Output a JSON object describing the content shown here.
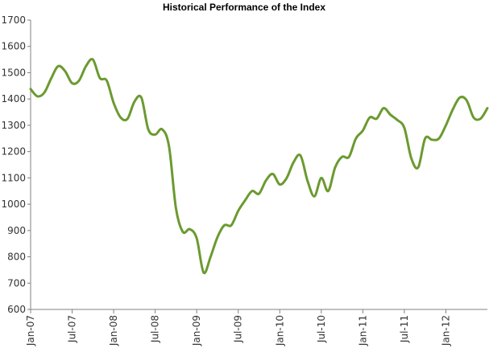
{
  "chart_data": {
    "type": "line",
    "title": "Historical Performance of the Index",
    "xlabel": "",
    "ylabel": "",
    "ylim": [
      600,
      1700
    ],
    "yticks": [
      600,
      700,
      800,
      900,
      1000,
      1100,
      1200,
      1300,
      1400,
      1500,
      1600,
      1700
    ],
    "xticks": [
      "Jan-07",
      "Jul-07",
      "Jan-08",
      "Jul-08",
      "Jan-09",
      "Jul-09",
      "Jan-10",
      "Jul-10",
      "Jan-11",
      "Jul-11",
      "Jan-12"
    ],
    "xlim": [
      "2007-01",
      "2012-07"
    ],
    "grid": false,
    "line_color": "#6b9a2f",
    "series": [
      {
        "x": [
          "2007-01",
          "2007-02",
          "2007-03",
          "2007-04",
          "2007-05",
          "2007-06",
          "2007-07",
          "2007-08",
          "2007-09",
          "2007-10",
          "2007-11",
          "2007-12",
          "2008-01",
          "2008-02",
          "2008-03",
          "2008-04",
          "2008-05",
          "2008-06",
          "2008-07",
          "2008-08",
          "2008-09",
          "2008-10",
          "2008-11",
          "2008-12",
          "2009-01",
          "2009-02",
          "2009-03",
          "2009-04",
          "2009-05",
          "2009-06",
          "2009-07",
          "2009-08",
          "2009-09",
          "2009-10",
          "2009-11",
          "2009-12",
          "2010-01",
          "2010-02",
          "2010-03",
          "2010-04",
          "2010-05",
          "2010-06",
          "2010-07",
          "2010-08",
          "2010-09",
          "2010-10",
          "2010-11",
          "2010-12",
          "2011-01",
          "2011-02",
          "2011-03",
          "2011-04",
          "2011-05",
          "2011-06",
          "2011-07",
          "2011-08",
          "2011-09",
          "2011-10",
          "2011-11",
          "2011-12",
          "2012-01",
          "2012-02",
          "2012-03",
          "2012-04",
          "2012-05",
          "2012-06",
          "2012-07"
        ],
        "values": [
          1438,
          1410,
          1425,
          1480,
          1525,
          1505,
          1460,
          1470,
          1525,
          1550,
          1480,
          1470,
          1385,
          1330,
          1325,
          1390,
          1405,
          1285,
          1265,
          1285,
          1220,
          985,
          895,
          905,
          870,
          740,
          800,
          875,
          920,
          920,
          975,
          1015,
          1050,
          1040,
          1090,
          1115,
          1075,
          1100,
          1160,
          1185,
          1090,
          1030,
          1100,
          1050,
          1140,
          1180,
          1180,
          1250,
          1280,
          1330,
          1325,
          1365,
          1340,
          1320,
          1290,
          1175,
          1140,
          1250,
          1245,
          1250,
          1300,
          1360,
          1405,
          1395,
          1330,
          1325,
          1365
        ]
      }
    ]
  }
}
